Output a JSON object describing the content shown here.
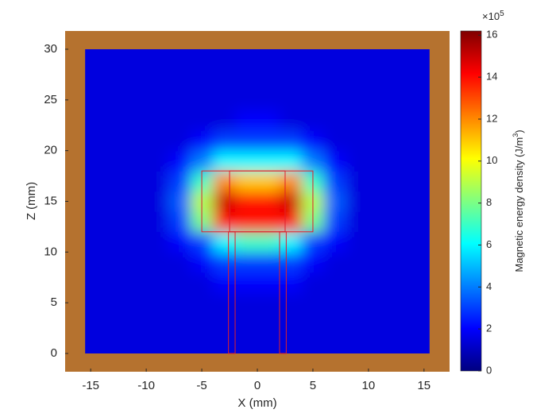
{
  "chart_data": {
    "type": "heatmap",
    "xlabel": "X (mm)",
    "ylabel": "Z (mm)",
    "xlim": [
      -17.3,
      17.3
    ],
    "ylim": [
      -1.8,
      31.8
    ],
    "xticks": [
      -15,
      -10,
      -5,
      0,
      5,
      10,
      15
    ],
    "yticks": [
      0,
      5,
      10,
      15,
      20,
      25,
      30
    ],
    "background_color": "#b5722f",
    "field_extent": [
      -15.5,
      15.5,
      0,
      30
    ],
    "x": [
      -15,
      -13,
      -11,
      -9,
      -7,
      -5,
      -3,
      -1,
      1,
      3,
      5,
      7,
      9,
      11,
      13,
      15
    ],
    "y": [
      1,
      3,
      5,
      7,
      9,
      11,
      13,
      15,
      17,
      19,
      21,
      23,
      25,
      27,
      29
    ],
    "z": [
      [
        1.5,
        1.5,
        1.5,
        1.5,
        1.5,
        1.5,
        1.5,
        1.5,
        1.5,
        1.5,
        1.5,
        1.5,
        1.5,
        1.5,
        1.5,
        1.5
      ],
      [
        1.5,
        1.5,
        1.5,
        1.5,
        1.5,
        1.5,
        1.5,
        1.5,
        1.5,
        1.5,
        1.5,
        1.5,
        1.5,
        1.5,
        1.5,
        1.5
      ],
      [
        1.5,
        1.5,
        1.5,
        1.5,
        1.5,
        1.5,
        1.5,
        1.5,
        1.5,
        1.5,
        1.5,
        1.5,
        1.5,
        1.5,
        1.5,
        1.5
      ],
      [
        1.5,
        1.5,
        1.5,
        1.5,
        1.5,
        1.5,
        2,
        2,
        2,
        2,
        1.5,
        1.5,
        1.5,
        1.5,
        1.5,
        1.5
      ],
      [
        1.5,
        1.5,
        1.5,
        1.5,
        1.5,
        2,
        3,
        3,
        3,
        3,
        2,
        1.5,
        1.5,
        1.5,
        1.5,
        1.5
      ],
      [
        1.5,
        1.5,
        1.5,
        1.5,
        2,
        3,
        6,
        7,
        7,
        6,
        3,
        2,
        1.5,
        1.5,
        1.5,
        1.5
      ],
      [
        1.5,
        1.5,
        1.5,
        1.5,
        3,
        8,
        14,
        14,
        14,
        14,
        8,
        3,
        1.5,
        1.5,
        1.5,
        1.5
      ],
      [
        1.5,
        1.5,
        1.5,
        1.5,
        3.5,
        9,
        15,
        14,
        14,
        15,
        9,
        3.5,
        1.5,
        1.5,
        1.5,
        1.5
      ],
      [
        1.5,
        1.5,
        1.5,
        1.5,
        3,
        7,
        12,
        11,
        11,
        12,
        7,
        3,
        1.5,
        1.5,
        1.5,
        1.5
      ],
      [
        1.5,
        1.5,
        1.5,
        1.5,
        2,
        4,
        6,
        6,
        6,
        6,
        4,
        2,
        1.5,
        1.5,
        1.5,
        1.5
      ],
      [
        1.5,
        1.5,
        1.5,
        1.5,
        1.5,
        2,
        3,
        3,
        3,
        3,
        2,
        1.5,
        1.5,
        1.5,
        1.5,
        1.5
      ],
      [
        1.5,
        1.5,
        1.5,
        1.5,
        1.5,
        1.5,
        1.5,
        2,
        2,
        1.5,
        1.5,
        1.5,
        1.5,
        1.5,
        1.5,
        1.5
      ],
      [
        1.5,
        1.5,
        1.5,
        1.5,
        1.5,
        1.5,
        1.5,
        1.5,
        1.5,
        1.5,
        1.5,
        1.5,
        1.5,
        1.5,
        1.5,
        1.5
      ],
      [
        1.5,
        1.5,
        1.5,
        1.5,
        1.5,
        1.5,
        1.5,
        1.5,
        1.5,
        1.5,
        1.5,
        1.5,
        1.5,
        1.5,
        1.5,
        1.5
      ],
      [
        1.5,
        1.5,
        1.5,
        1.5,
        1.5,
        1.5,
        1.5,
        1.5,
        1.5,
        1.5,
        1.5,
        1.5,
        1.5,
        1.5,
        1.5,
        1.5
      ]
    ],
    "colormap": "jet",
    "clim": [
      0,
      16.2
    ],
    "colorbar_ticks": [
      0,
      2,
      4,
      6,
      8,
      10,
      12,
      14,
      16
    ],
    "colorbar_multiplier": "×10",
    "colorbar_exponent": "5",
    "colorbar_label": "Magnetic energy density (J/m",
    "colorbar_label_sup": "3",
    "colorbar_label_end": ")",
    "outline_color": "#e0202a",
    "outlines": [
      [
        -5,
        5,
        12,
        18
      ],
      [
        -2.5,
        2.5,
        12,
        18
      ],
      [
        -2.6,
        -2,
        0,
        12
      ],
      [
        2,
        2.6,
        0,
        12
      ]
    ]
  }
}
